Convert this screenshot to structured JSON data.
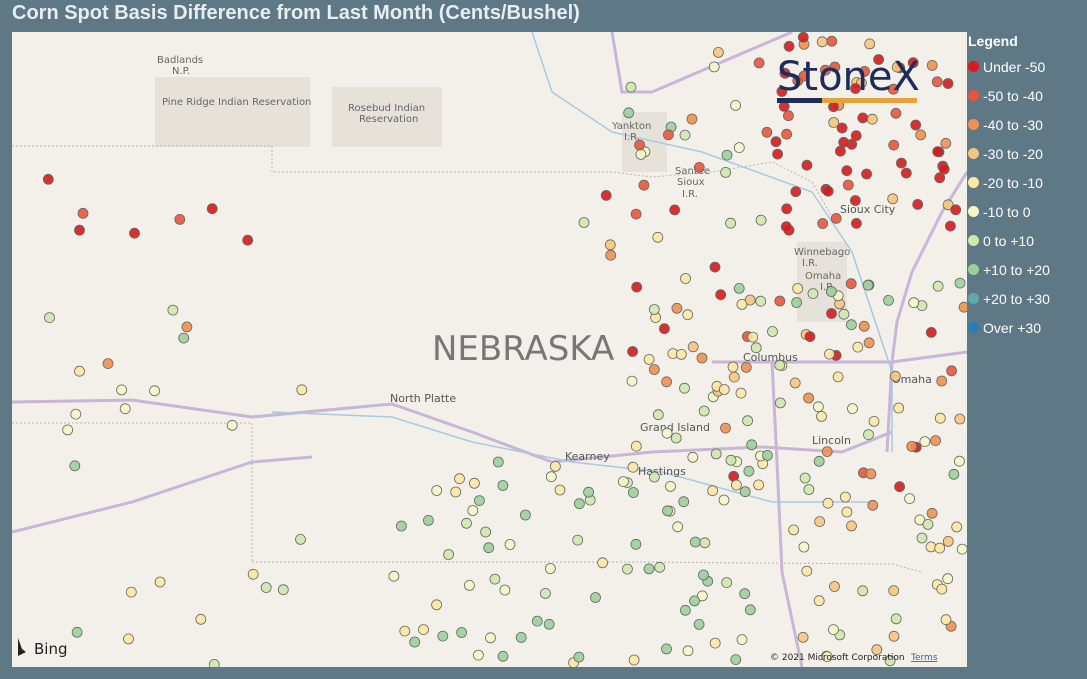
{
  "header": {
    "title": "Corn Spot Basis Difference from Last Month (Cents/Bushel)"
  },
  "map": {
    "region_label": "NEBRASKA",
    "places": [
      "Badlands",
      "N.P.",
      "Pine Ridge Indian Reservation",
      "Rosebud Indian",
      "Reservation",
      "Yankton",
      "I.R.",
      "Santee",
      "Sioux",
      "I.R.",
      "Sioux City",
      "Winnebago",
      "I.R.",
      "Omaha",
      "I.R.",
      "North Platte",
      "Columbus",
      "Omaha",
      "Grand Island",
      "Lincoln",
      "Kearney",
      "Hastings"
    ],
    "logo": "StoneX",
    "provider": "Bing",
    "copyright": "© 2021 Microsoft Corporation",
    "terms": "Terms"
  },
  "legend": {
    "title": "Legend",
    "items": [
      {
        "label": "Under -50",
        "color": "#d7191c"
      },
      {
        "label": "-50 to -40",
        "color": "#e8553a"
      },
      {
        "label": "-40 to -30",
        "color": "#f0904f"
      },
      {
        "label": "-30 to -20",
        "color": "#f8c57c"
      },
      {
        "label": "-20 to -10",
        "color": "#fde8a3"
      },
      {
        "label": "-10 to 0",
        "color": "#f5f7c6"
      },
      {
        "label": "0 to +10",
        "color": "#cfe8ad"
      },
      {
        "label": "+10 to +20",
        "color": "#9ccf9a"
      },
      {
        "label": "+20 to +30",
        "color": "#5fa8b3"
      },
      {
        "label": "Over +30",
        "color": "#2b7bb9"
      }
    ]
  }
}
